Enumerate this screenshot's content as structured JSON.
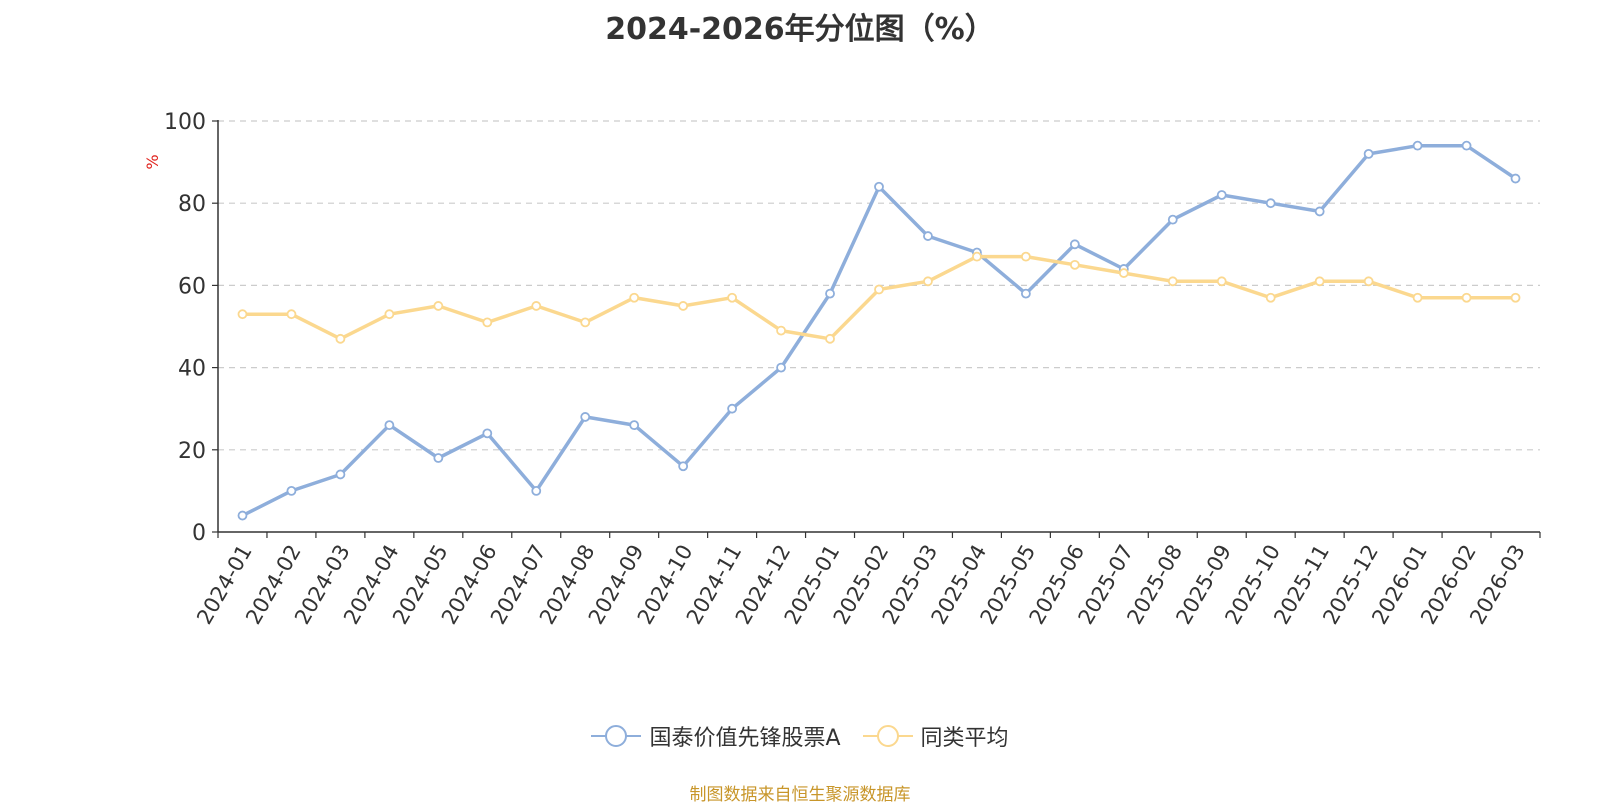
{
  "chart_data": {
    "type": "line",
    "title": "2024-2026年分位图（%）",
    "ylabel": "%",
    "ylim": [
      0,
      100
    ],
    "yticks": [
      0,
      20,
      40,
      60,
      80,
      100
    ],
    "grid": "horizontal dashed",
    "legend_position": "bottom-center",
    "categories": [
      "2024-01",
      "2024-02",
      "2024-03",
      "2024-04",
      "2024-05",
      "2024-06",
      "2024-07",
      "2024-08",
      "2024-09",
      "2024-10",
      "2024-11",
      "2024-12",
      "2025-01",
      "2025-02",
      "2025-03",
      "2025-04",
      "2025-05",
      "2025-06",
      "2025-07",
      "2025-08",
      "2025-09",
      "2025-10",
      "2025-11",
      "2025-12",
      "2026-01",
      "2026-02",
      "2026-03"
    ],
    "series": [
      {
        "name": "国泰价值先锋股票A",
        "color": "#8eaedb",
        "values": [
          4,
          10,
          14,
          26,
          18,
          24,
          10,
          28,
          26,
          16,
          30,
          40,
          58,
          84,
          72,
          68,
          58,
          70,
          64,
          76,
          82,
          80,
          78,
          92,
          94,
          94,
          86
        ]
      },
      {
        "name": "同类平均",
        "color": "#fbd88f",
        "values": [
          53,
          53,
          47,
          53,
          55,
          51,
          55,
          51,
          57,
          55,
          57,
          49,
          47,
          59,
          61,
          67,
          67,
          65,
          63,
          61,
          61,
          57,
          61,
          61,
          57,
          57,
          57
        ]
      }
    ]
  },
  "source_note": "制图数据来自恒生聚源数据库"
}
